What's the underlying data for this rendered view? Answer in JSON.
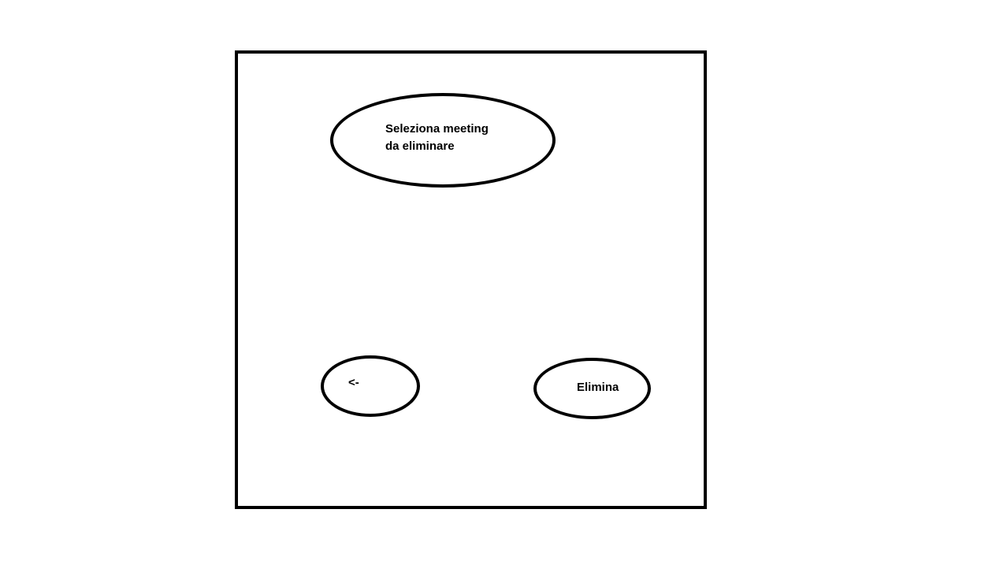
{
  "dialog": {
    "title": "Seleziona meeting\nda eliminare",
    "back_label": "<-",
    "delete_label": "Elimina"
  },
  "colors": {
    "stroke": "#000000",
    "background": "#ffffff"
  }
}
